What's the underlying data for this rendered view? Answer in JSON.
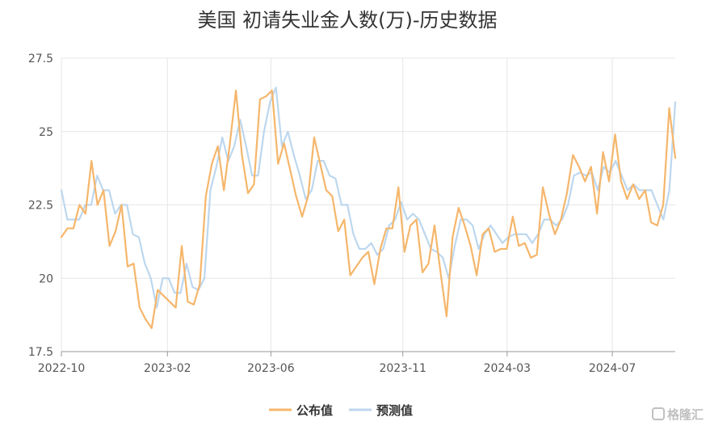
{
  "watermark": {
    "text": "格隆汇"
  },
  "chart_data": {
    "type": "line",
    "title": "美国 初请失业金人数(万)-历史数据",
    "xlabel": "",
    "ylabel": "",
    "ylim": [
      17.5,
      27.5
    ],
    "yticks": [
      "27.5",
      "25",
      "22.5",
      "20",
      "17.5"
    ],
    "xticks": [
      "2022-10",
      "2023-02",
      "2023-06",
      "2023-11",
      "2024-03",
      "2024-07"
    ],
    "grid": true,
    "legend_position": "bottom",
    "x_start": "2022-10-01",
    "x_end": "2024-09-12",
    "series": [
      {
        "name": "公布值",
        "color": "#F5B66B",
        "values": [
          21.4,
          21.7,
          21.7,
          22.5,
          22.2,
          24.0,
          22.5,
          23.0,
          21.1,
          21.6,
          22.5,
          20.4,
          20.5,
          19.0,
          18.6,
          18.3,
          19.6,
          19.4,
          19.2,
          19.0,
          21.1,
          19.2,
          19.1,
          19.8,
          22.8,
          23.9,
          24.5,
          23.0,
          24.6,
          26.4,
          24.2,
          22.9,
          23.2,
          26.1,
          26.2,
          26.4,
          23.9,
          24.6,
          23.7,
          22.8,
          22.1,
          22.8,
          24.8,
          23.9,
          23.0,
          22.8,
          21.6,
          22.0,
          20.1,
          20.4,
          20.7,
          20.9,
          19.8,
          21.0,
          21.7,
          21.7,
          23.1,
          20.9,
          21.8,
          22.0,
          20.2,
          20.5,
          21.8,
          20.2,
          18.7,
          21.4,
          22.4,
          21.8,
          21.1,
          20.1,
          21.5,
          21.7,
          20.9,
          21.0,
          21.0,
          22.1,
          21.1,
          21.2,
          20.7,
          20.8,
          23.1,
          22.2,
          21.5,
          22.0,
          22.9,
          24.2,
          23.8,
          23.3,
          23.8,
          22.2,
          24.3,
          23.3,
          24.9,
          23.3,
          22.7,
          23.2,
          22.7,
          23.0,
          21.9,
          21.8,
          22.5,
          25.8,
          24.1
        ]
      },
      {
        "name": "预测值",
        "color": "#BDD7EE",
        "values": [
          23.0,
          22.0,
          22.0,
          22.0,
          22.5,
          22.5,
          23.5,
          23.0,
          23.0,
          22.2,
          22.5,
          22.5,
          21.5,
          21.4,
          20.5,
          20.0,
          19.0,
          20.0,
          20.0,
          19.5,
          19.5,
          20.5,
          19.7,
          19.6,
          20.0,
          23.0,
          23.8,
          24.8,
          24.0,
          24.5,
          25.4,
          24.5,
          23.5,
          23.5,
          25.0,
          26.0,
          26.5,
          24.5,
          25.0,
          24.2,
          23.5,
          22.7,
          23.0,
          24.0,
          24.0,
          23.5,
          23.4,
          22.5,
          22.5,
          21.5,
          21.0,
          21.0,
          21.2,
          20.8,
          21.0,
          21.8,
          22.0,
          22.6,
          22.0,
          22.2,
          22.0,
          21.5,
          21.0,
          20.9,
          20.7,
          20.0,
          21.1,
          22.0,
          22.0,
          21.8,
          21.0,
          21.5,
          21.8,
          21.5,
          21.2,
          21.4,
          21.5,
          21.5,
          21.5,
          21.2,
          21.5,
          22.0,
          22.0,
          21.8,
          22.0,
          22.5,
          23.5,
          23.6,
          23.5,
          23.6,
          23.0,
          23.8,
          23.6,
          24.0,
          23.5,
          23.0,
          23.2,
          23.0,
          23.0,
          23.0,
          22.5,
          22.0,
          23.0,
          26.0
        ]
      }
    ]
  }
}
